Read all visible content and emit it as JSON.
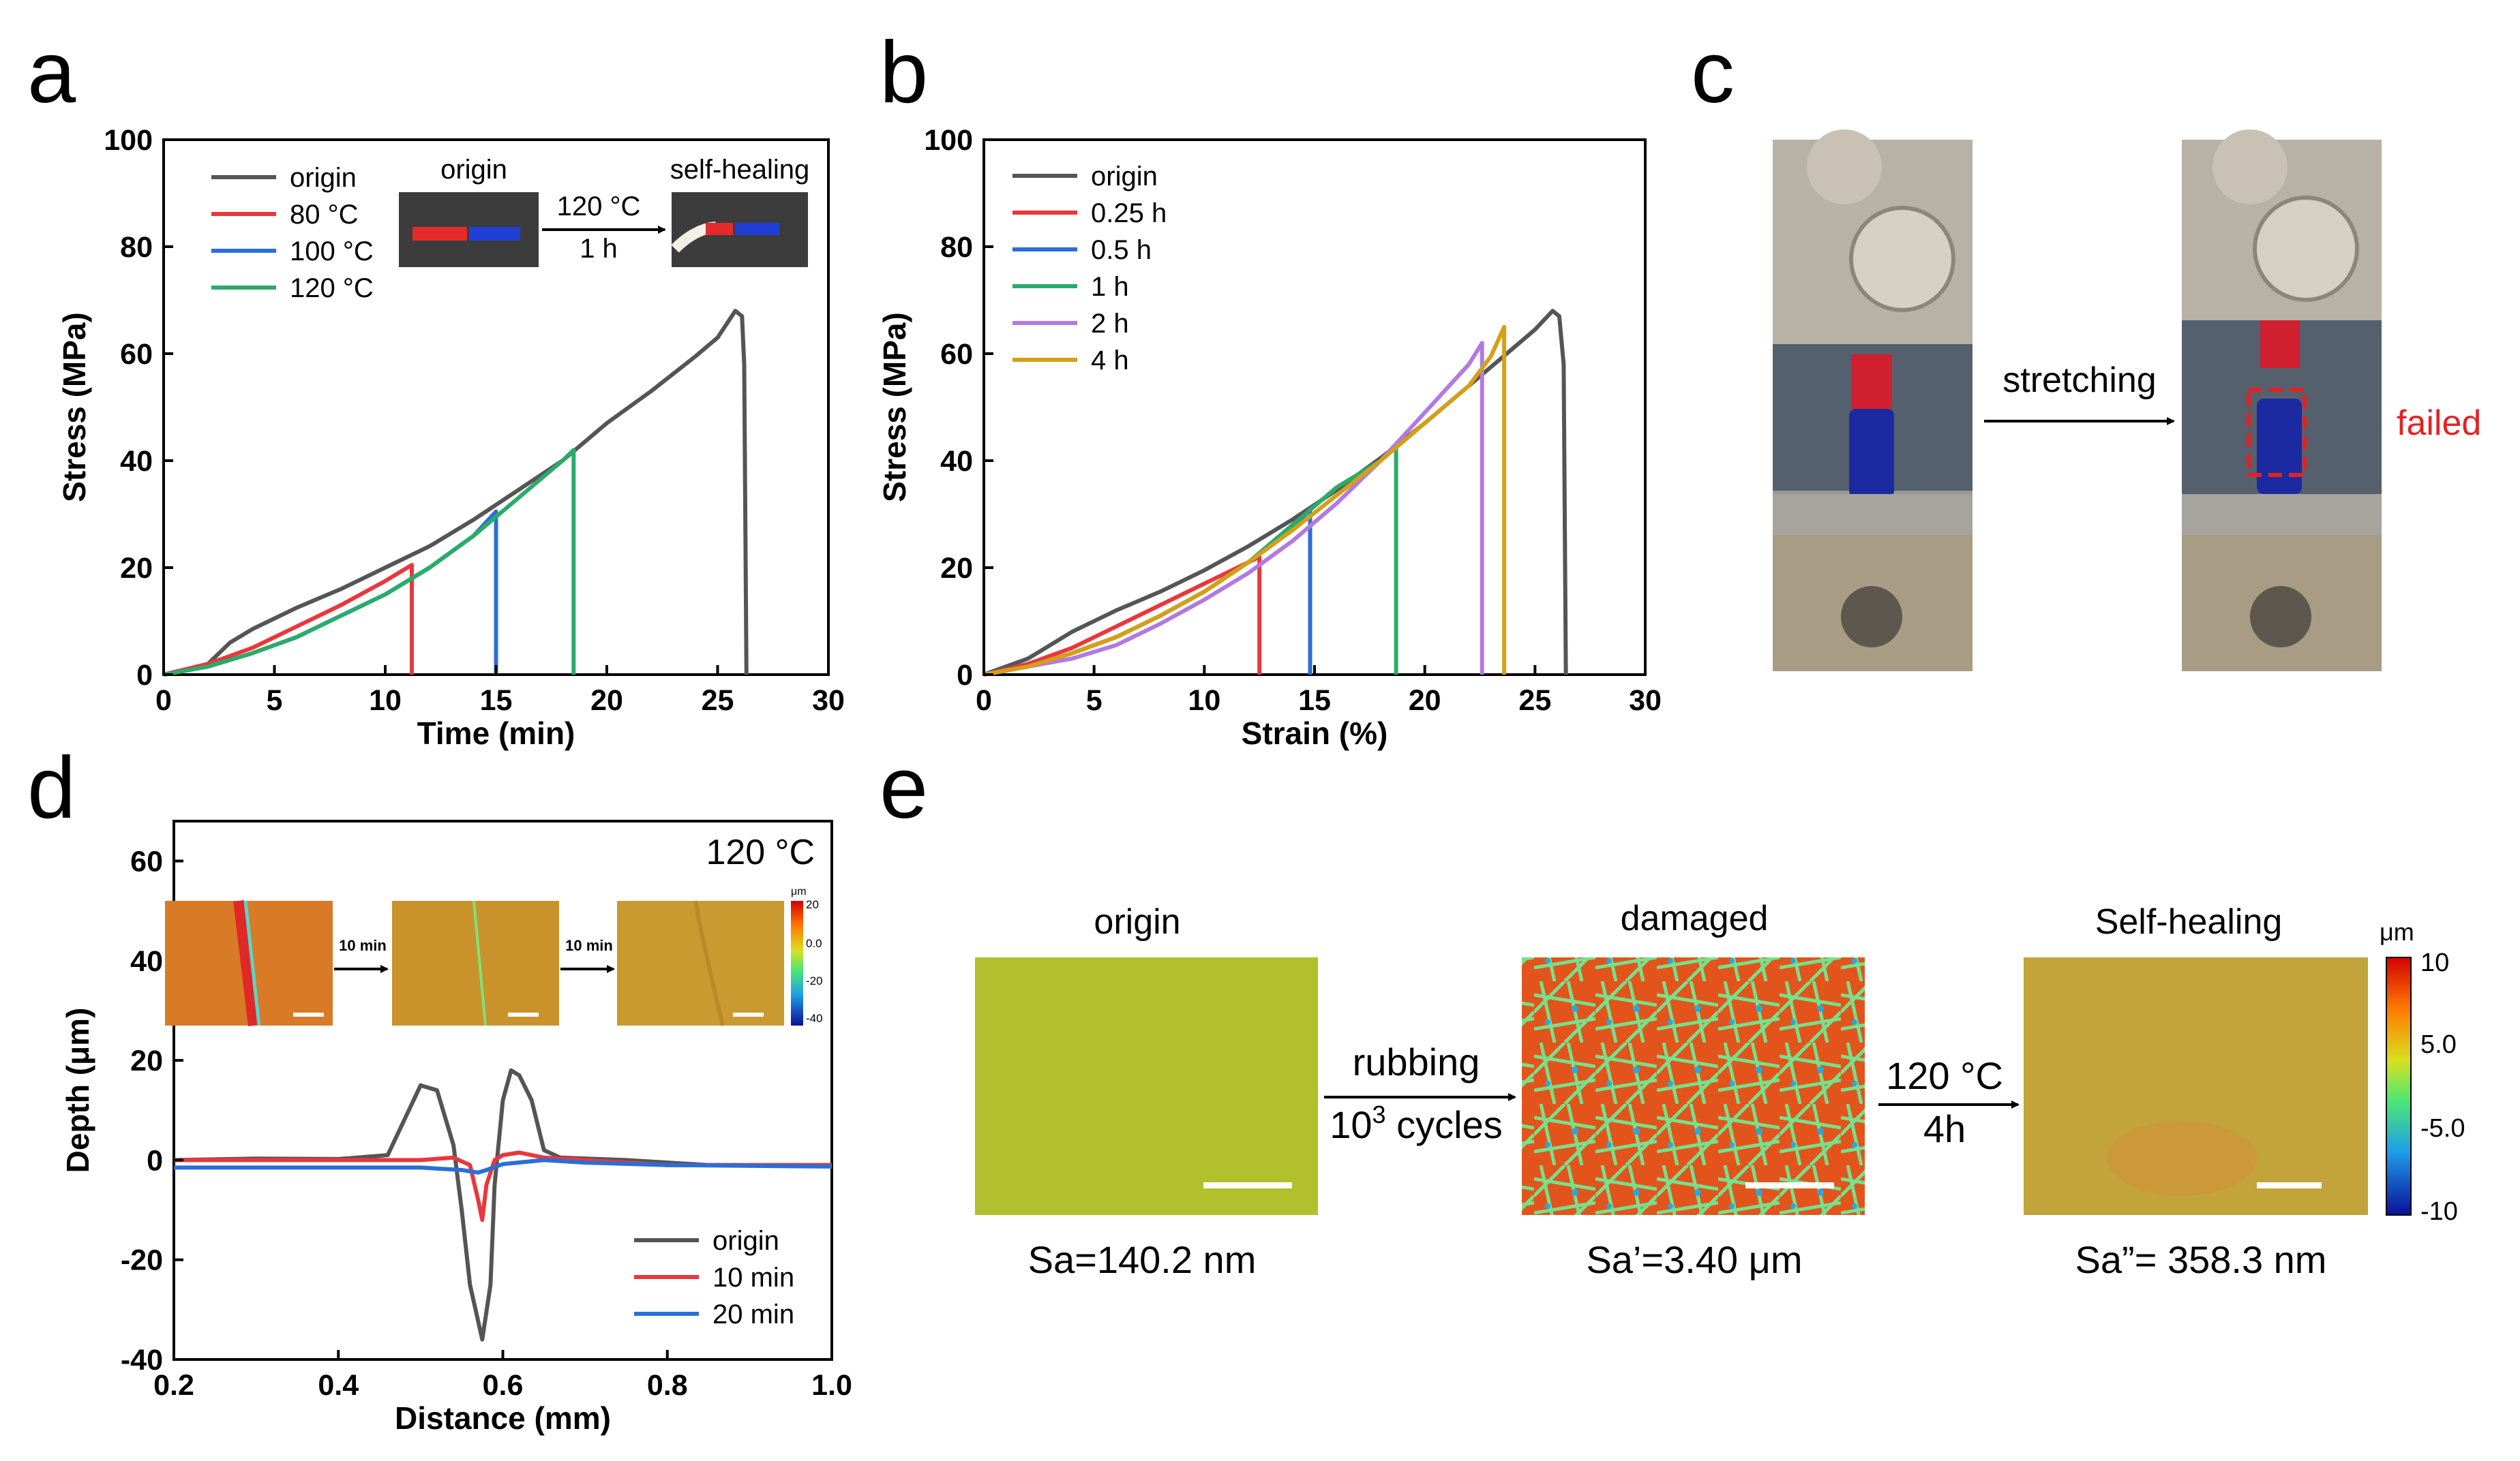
{
  "panels": {
    "a": {
      "label": "a"
    },
    "b": {
      "label": "b"
    },
    "c": {
      "label": "c",
      "arrow_label": "stretching",
      "status": "failed"
    },
    "d": {
      "label": "d",
      "temperature": "120 °C",
      "step_label": "10 min",
      "colorbar": {
        "unit": "μm",
        "ticks": [
          "20",
          "0.0",
          "-20",
          "-40"
        ]
      }
    },
    "e": {
      "label": "e",
      "titles": [
        "origin",
        "damaged",
        "Self-healing"
      ],
      "captions": [
        "Sa=140.2 nm",
        "Sa’=3.40 μm",
        "Sa”= 358.3 nm"
      ],
      "arrow1": {
        "line1": "rubbing",
        "line2_base": "10",
        "line2_sup": "3",
        "line2_rest": " cycles"
      },
      "arrow2": {
        "line1": "120 °C",
        "line2": "4h"
      },
      "colorbar": {
        "unit": "μm",
        "ticks": [
          "10",
          "5.0",
          "-5.0",
          "-10"
        ]
      }
    }
  },
  "chart_data": [
    {
      "id": "a",
      "type": "line",
      "xlabel": "Time (min)",
      "ylabel": "Stress (MPa)",
      "xlim": [
        0,
        30
      ],
      "ylim": [
        0,
        100
      ],
      "xticks": [
        "0",
        "5",
        "10",
        "15",
        "20",
        "25",
        "30"
      ],
      "yticks": [
        "0",
        "20",
        "40",
        "60",
        "80",
        "100"
      ],
      "legend_position": "top-left",
      "inset": {
        "left_label": "origin",
        "right_label": "self-healing",
        "arrow_top": "120 °C",
        "arrow_bottom": "1 h"
      },
      "series": [
        {
          "name": "origin",
          "color": "#555555",
          "x": [
            0,
            2,
            3,
            4,
            6,
            8,
            10,
            12,
            14,
            16,
            18,
            20,
            22,
            24,
            25,
            25.8,
            26.1,
            26.2,
            26.3
          ],
          "y": [
            0,
            2,
            6,
            8.5,
            12.5,
            16,
            20,
            24,
            29,
            34.5,
            40,
            47,
            53,
            59.5,
            63,
            68,
            67,
            58,
            0
          ]
        },
        {
          "name": "80 °C",
          "color": "#e8383d",
          "x": [
            0,
            2,
            4,
            6,
            8,
            10,
            11.2,
            11.2
          ],
          "y": [
            0,
            2,
            5,
            9,
            13,
            17.5,
            20.5,
            0
          ]
        },
        {
          "name": "100 °C",
          "color": "#2a6fd6",
          "x": [
            0,
            2,
            4,
            6,
            8,
            10,
            12,
            14,
            15,
            15
          ],
          "y": [
            0,
            1.5,
            4,
            7,
            11,
            15,
            20,
            26,
            30.5,
            0
          ]
        },
        {
          "name": "120 °C",
          "color": "#2bab6a",
          "x": [
            0,
            2,
            4,
            6,
            8,
            10,
            12,
            14,
            16,
            18,
            18.5,
            18.5
          ],
          "y": [
            0,
            1.5,
            4,
            7,
            11,
            15,
            20,
            26,
            33,
            40,
            42,
            0
          ]
        }
      ]
    },
    {
      "id": "b",
      "type": "line",
      "xlabel": "Strain (%)",
      "ylabel": "Stress (MPa)",
      "xlim": [
        0,
        30
      ],
      "ylim": [
        0,
        100
      ],
      "xticks": [
        "0",
        "5",
        "10",
        "15",
        "20",
        "25",
        "30"
      ],
      "yticks": [
        "0",
        "20",
        "40",
        "60",
        "80",
        "100"
      ],
      "legend_position": "top-left",
      "series": [
        {
          "name": "origin",
          "color": "#555555",
          "x": [
            0,
            2,
            4,
            6,
            8,
            10,
            12,
            14,
            16,
            18,
            20,
            22,
            24,
            25,
            25.8,
            26.1,
            26.3,
            26.4
          ],
          "y": [
            0,
            3,
            8,
            12,
            15.5,
            19.5,
            24,
            29,
            34.5,
            40.5,
            47,
            54,
            61,
            64.5,
            68,
            67,
            58,
            0
          ]
        },
        {
          "name": "0.25 h",
          "color": "#e8383d",
          "x": [
            0,
            2,
            4,
            6,
            8,
            10,
            12,
            12.5,
            12.5
          ],
          "y": [
            0,
            2,
            5,
            9,
            13,
            17,
            21,
            22,
            0
          ]
        },
        {
          "name": "0.5 h",
          "color": "#2a6fd6",
          "x": [
            0,
            2,
            4,
            6,
            8,
            10,
            12,
            14,
            14.8,
            14.8
          ],
          "y": [
            0,
            1.5,
            4,
            7,
            11,
            15.5,
            21,
            27,
            31,
            0
          ]
        },
        {
          "name": "1 h",
          "color": "#2bab6a",
          "x": [
            0,
            2,
            4,
            6,
            8,
            10,
            12,
            14,
            16,
            18,
            18.7,
            18.7
          ],
          "y": [
            0,
            1.5,
            4,
            7,
            11,
            15.5,
            21,
            28,
            35,
            40,
            43,
            0
          ]
        },
        {
          "name": "2 h",
          "color": "#b27ae0",
          "x": [
            0,
            2,
            4,
            6,
            8,
            10,
            12,
            14,
            16,
            18,
            20,
            22,
            22.6,
            22.6
          ],
          "y": [
            0,
            1.5,
            3,
            5.5,
            9.5,
            14,
            19,
            25,
            32,
            40,
            49,
            58,
            62,
            0
          ]
        },
        {
          "name": "4 h",
          "color": "#d4a017",
          "x": [
            0,
            2,
            4,
            6,
            8,
            10,
            12,
            14,
            16,
            18,
            20,
            22,
            23,
            23.6,
            23.6
          ],
          "y": [
            0,
            1.5,
            4,
            7,
            11,
            15.5,
            21,
            27,
            33.5,
            40,
            47,
            54,
            59.5,
            65,
            0
          ]
        }
      ]
    },
    {
      "id": "d",
      "type": "line",
      "xlabel": "Distance (mm)",
      "ylabel": "Depth (μm)",
      "xlim": [
        0.2,
        1.0
      ],
      "ylim": [
        -40,
        68
      ],
      "xticks": [
        "0.2",
        "0.4",
        "0.6",
        "0.8",
        "1.0"
      ],
      "yticks": [
        "-40",
        "-20",
        "0",
        "20",
        "40",
        "60"
      ],
      "legend_position": "bottom-right",
      "series": [
        {
          "name": "origin",
          "color": "#555555",
          "x": [
            0.2,
            0.3,
            0.4,
            0.46,
            0.48,
            0.5,
            0.52,
            0.54,
            0.55,
            0.56,
            0.575,
            0.585,
            0.59,
            0.6,
            0.61,
            0.62,
            0.635,
            0.65,
            0.67,
            0.75,
            0.85,
            1.0
          ],
          "y": [
            0,
            0.3,
            0.2,
            1,
            8,
            15,
            14,
            3,
            -10,
            -25,
            -36,
            -25,
            -5,
            12,
            18,
            17,
            12,
            2,
            0.5,
            0,
            -1,
            -1
          ]
        },
        {
          "name": "10 min",
          "color": "#e8383d",
          "x": [
            0.2,
            0.5,
            0.54,
            0.56,
            0.57,
            0.575,
            0.58,
            0.59,
            0.6,
            0.62,
            0.65,
            0.7,
            0.8,
            1.0
          ],
          "y": [
            0,
            0,
            0.5,
            -1,
            -8,
            -12,
            -5,
            0,
            1,
            1.5,
            0.5,
            0,
            -1,
            -1
          ]
        },
        {
          "name": "20 min",
          "color": "#2a6fd6",
          "x": [
            0.2,
            0.5,
            0.55,
            0.57,
            0.58,
            0.6,
            0.65,
            0.7,
            0.8,
            1.0
          ],
          "y": [
            -1.5,
            -1.5,
            -2,
            -2.5,
            -2,
            -0.8,
            0,
            -0.5,
            -1,
            -1.3
          ]
        }
      ]
    }
  ]
}
